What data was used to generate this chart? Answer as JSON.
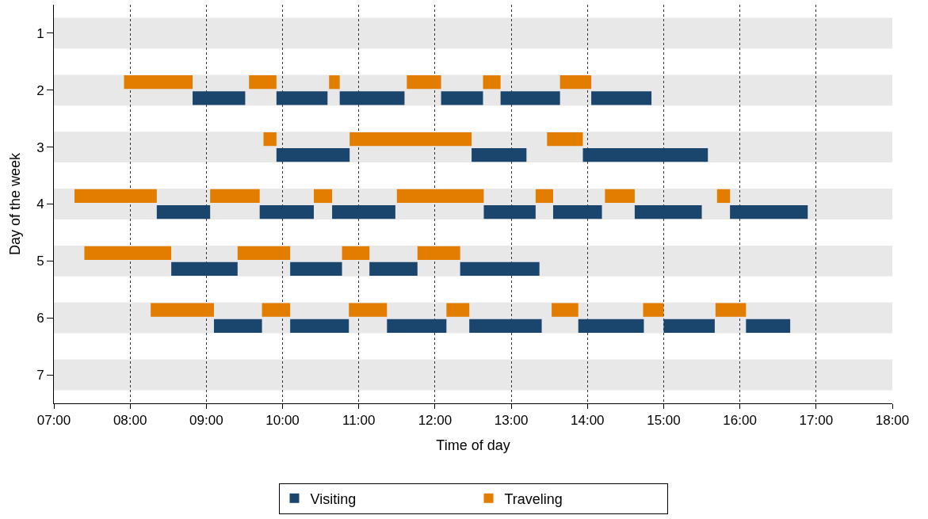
{
  "chart_data": {
    "type": "bar",
    "orientation": "horizontal",
    "xlabel": "Time of day",
    "ylabel": "Day of the week",
    "categories": [
      "1",
      "2",
      "3",
      "4",
      "5",
      "6",
      "7"
    ],
    "xlim": [
      7,
      18
    ],
    "xticks": [
      {
        "value": 7,
        "label": "07:00"
      },
      {
        "value": 8,
        "label": "08:00"
      },
      {
        "value": 9,
        "label": "09:00"
      },
      {
        "value": 10,
        "label": "10:00"
      },
      {
        "value": 11,
        "label": "11:00"
      },
      {
        "value": 12,
        "label": "12:00"
      },
      {
        "value": 13,
        "label": "13:00"
      },
      {
        "value": 14,
        "label": "14:00"
      },
      {
        "value": 15,
        "label": "15:00"
      },
      {
        "value": 16,
        "label": "16:00"
      },
      {
        "value": 17,
        "label": "17:00"
      },
      {
        "value": 18,
        "label": "18:00"
      }
    ],
    "grid": "x",
    "legend": "bottom",
    "bands": [
      {
        "axis": "y",
        "from": "1",
        "to": "1",
        "color": "#e8e8e8"
      },
      {
        "axis": "y",
        "from": "2",
        "to": "2",
        "color": "#e8e8e8"
      },
      {
        "axis": "y",
        "from": "3",
        "to": "3",
        "color": "#e8e8e8"
      },
      {
        "axis": "y",
        "from": "4",
        "to": "4",
        "color": "#e8e8e8"
      },
      {
        "axis": "y",
        "from": "5",
        "to": "5",
        "color": "#e8e8e8"
      },
      {
        "axis": "y",
        "from": "6",
        "to": "6",
        "color": "#e8e8e8"
      },
      {
        "axis": "y",
        "from": "7",
        "to": "7",
        "color": "#e8e8e8"
      }
    ],
    "series": [
      {
        "name": "Visiting",
        "color": "#1a466e",
        "base": [
          null,
          8.82,
          9.92,
          8.35,
          8.54,
          9.1,
          null
        ],
        "values": [
          null,
          0.69,
          0.96,
          0.7,
          0.87,
          0.63,
          null
        ]
      },
      {
        "color": "#1a466e",
        "base": [
          null,
          9.92,
          12.48,
          9.7,
          10.1,
          10.1,
          null
        ],
        "values": [
          null,
          0.67,
          0.72,
          0.71,
          0.68,
          0.77,
          null
        ]
      },
      {
        "color": "#1a466e",
        "base": [
          null,
          10.75,
          13.94,
          10.65,
          11.14,
          11.37,
          null
        ],
        "values": [
          null,
          0.85,
          1.64,
          0.83,
          0.63,
          0.78,
          null
        ]
      },
      {
        "color": "#1a466e",
        "base": [
          null,
          12.08,
          null,
          12.64,
          12.33,
          12.45,
          null
        ],
        "values": [
          null,
          0.55,
          null,
          0.68,
          1.04,
          0.95,
          null
        ]
      },
      {
        "color": "#1a466e",
        "base": [
          null,
          12.86,
          null,
          13.55,
          null,
          13.88,
          null
        ],
        "values": [
          null,
          0.78,
          null,
          0.64,
          null,
          0.86,
          null
        ]
      },
      {
        "color": "#1a466e",
        "base": [
          null,
          14.05,
          null,
          14.62,
          null,
          15.0,
          null
        ],
        "values": [
          null,
          0.79,
          null,
          0.88,
          null,
          0.67,
          null
        ]
      },
      {
        "color": "#1a466e",
        "base": [
          null,
          null,
          null,
          15.87,
          null,
          16.08,
          null
        ],
        "values": [
          null,
          null,
          null,
          1.02,
          null,
          0.58,
          null
        ]
      },
      {
        "name": "Traveling",
        "color": "#e37d00",
        "base": [
          null,
          7.92,
          9.75,
          7.27,
          7.4,
          8.27,
          null
        ],
        "values": [
          null,
          0.9,
          0.17,
          1.08,
          1.14,
          0.83,
          null
        ]
      },
      {
        "color": "#e37d00",
        "base": [
          null,
          9.56,
          10.88,
          9.05,
          9.41,
          9.73,
          null
        ],
        "values": [
          null,
          0.36,
          1.6,
          0.65,
          0.69,
          0.37,
          null
        ]
      },
      {
        "color": "#e37d00",
        "base": [
          null,
          10.61,
          13.47,
          10.41,
          10.78,
          10.87,
          null
        ],
        "values": [
          null,
          0.14,
          0.47,
          0.24,
          0.36,
          0.5,
          null
        ]
      },
      {
        "color": "#e37d00",
        "base": [
          null,
          11.63,
          null,
          11.5,
          11.77,
          12.15,
          null
        ],
        "values": [
          null,
          0.45,
          null,
          1.14,
          0.56,
          0.3,
          null
        ]
      },
      {
        "color": "#e37d00",
        "base": [
          null,
          12.63,
          null,
          13.32,
          null,
          13.53,
          null
        ],
        "values": [
          null,
          0.23,
          null,
          0.23,
          null,
          0.35,
          null
        ]
      },
      {
        "color": "#e37d00",
        "base": [
          null,
          13.64,
          null,
          14.23,
          null,
          14.73,
          null
        ],
        "values": [
          null,
          0.41,
          null,
          0.39,
          null,
          0.27,
          null
        ]
      },
      {
        "color": "#e37d00",
        "base": [
          null,
          null,
          null,
          15.7,
          null,
          15.68,
          null
        ],
        "values": [
          null,
          null,
          null,
          0.17,
          null,
          0.4,
          null
        ]
      }
    ]
  }
}
